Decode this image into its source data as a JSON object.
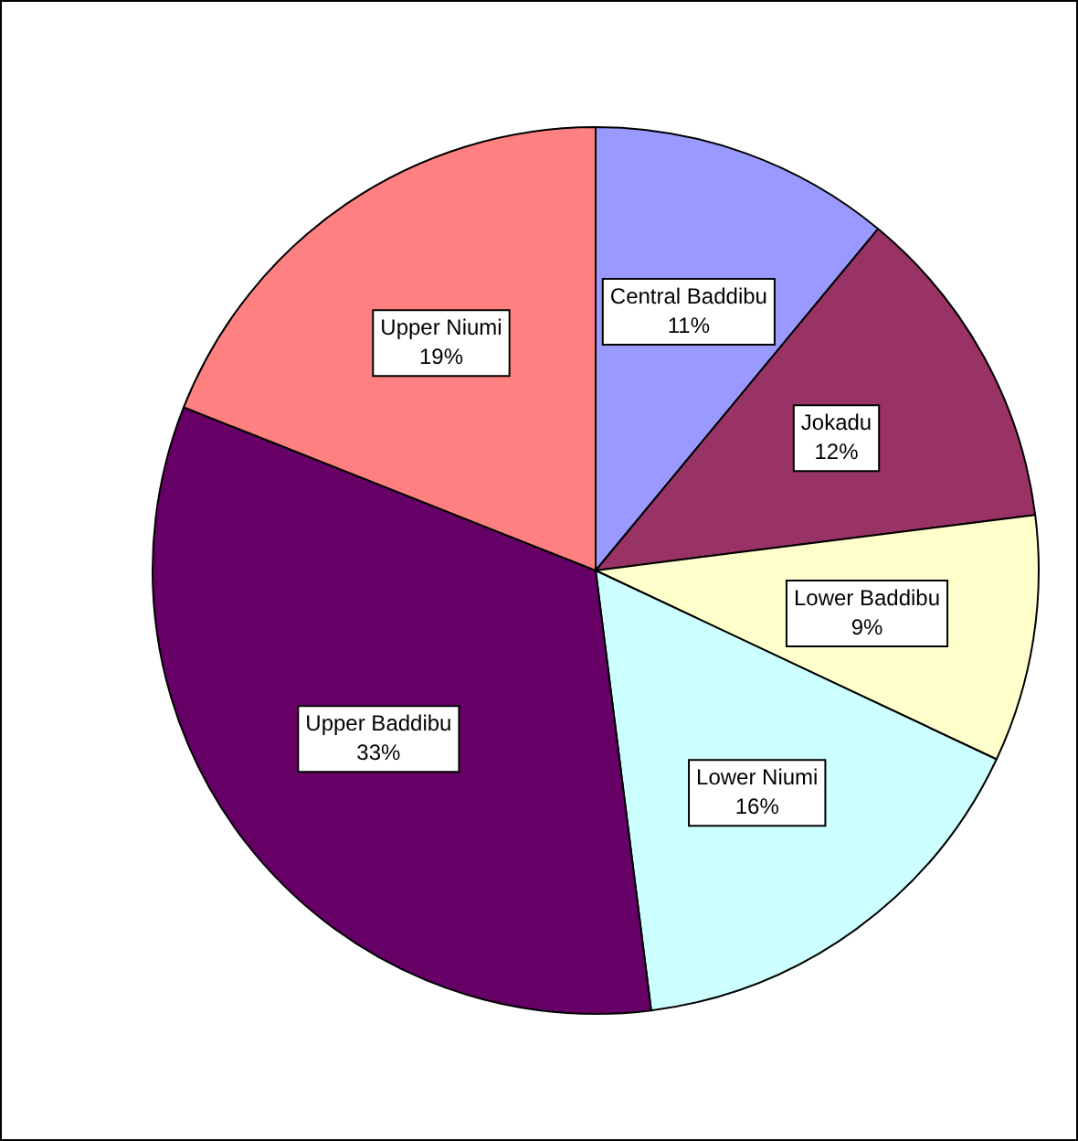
{
  "chart_data": {
    "type": "pie",
    "categories": [
      "Central Baddibu",
      "Jokadu",
      "Lower Baddibu",
      "Lower Niumi",
      "Upper Baddibu",
      "Upper Niumi"
    ],
    "values": [
      11,
      12,
      9,
      16,
      33,
      19
    ],
    "colors": [
      "#9999ff",
      "#993366",
      "#ffffcc",
      "#ccffff",
      "#660066",
      "#ff8080"
    ],
    "value_labels": [
      "11%",
      "12%",
      "9%",
      "16%",
      "33%",
      "19%"
    ]
  }
}
